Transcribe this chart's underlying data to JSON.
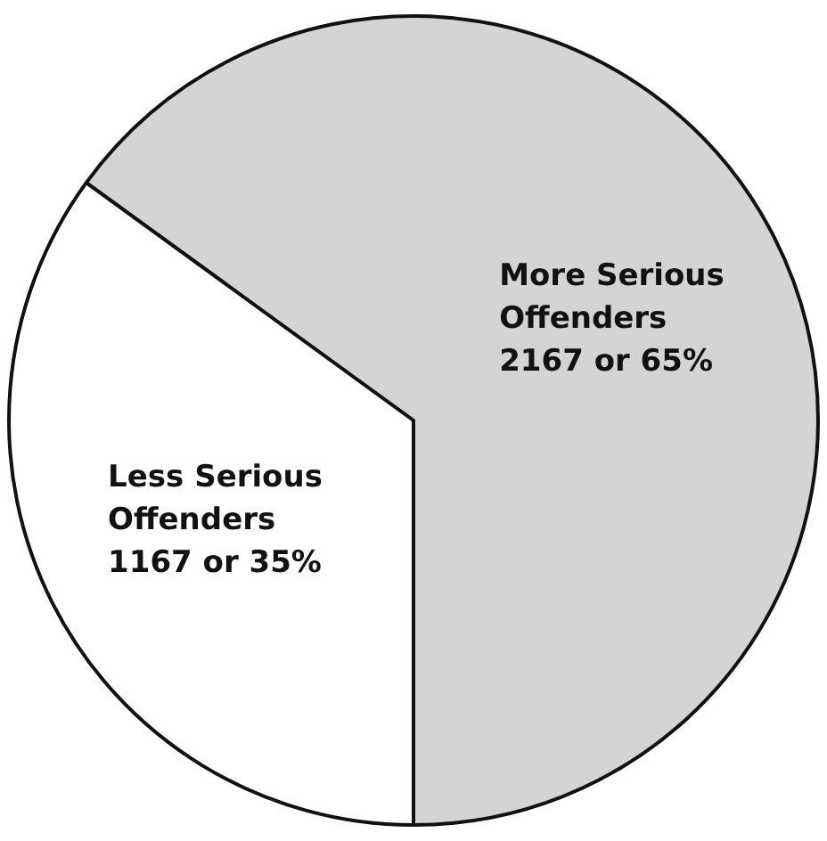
{
  "chart_data": {
    "type": "pie",
    "categories": [
      "More Serious Offenders",
      "Less Serious Offenders"
    ],
    "values": [
      2167,
      1167
    ],
    "value_labels": [
      "2167 or 65%",
      "1167 or 35%"
    ],
    "colors": [
      "#d4d4d4",
      "#ffffff"
    ],
    "legend": false
  }
}
